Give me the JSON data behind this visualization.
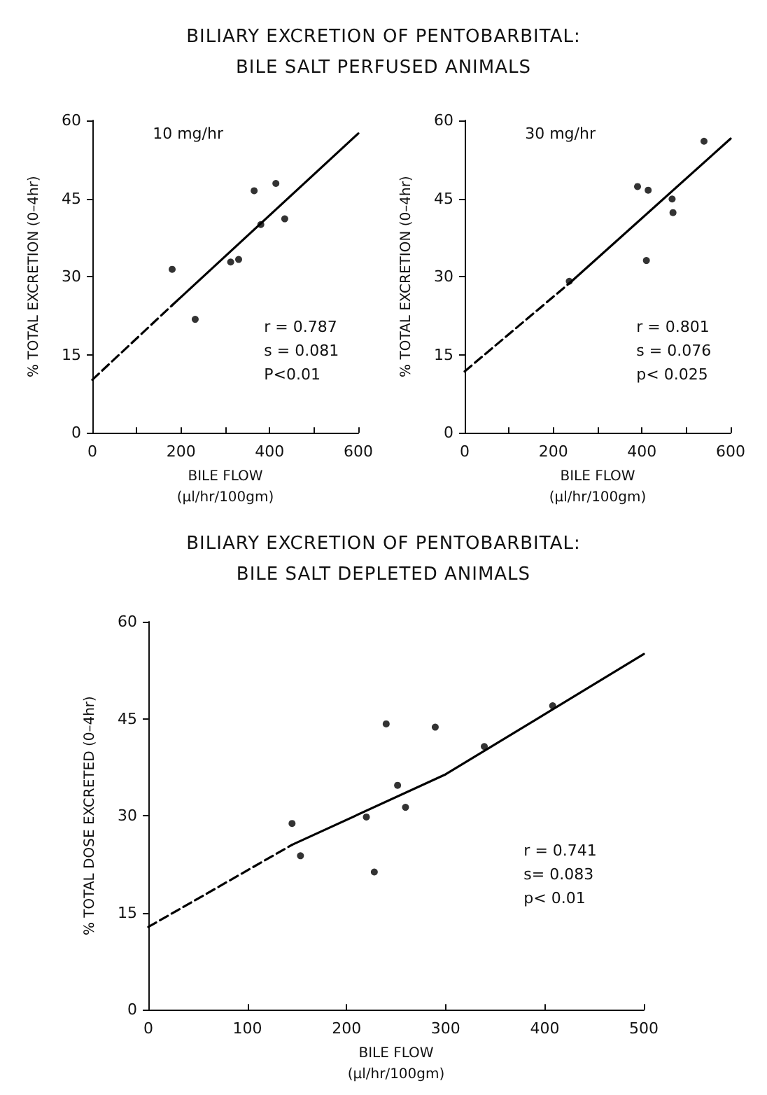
{
  "chart_data": [
    {
      "type": "scatter",
      "title": "BILIARY EXCRETION OF PENTOBARBITAL:\nBILE SALT PERFUSED ANIMALS",
      "xlabel": "BILE FLOW\n(µl/hr/100gm)",
      "ylabel": "% TOTAL EXCRETION (0–4hr)",
      "annotations": [
        "10 mg/hr",
        "r = 0.787",
        "s = 0.081",
        "P<0.01"
      ],
      "xlim": [
        0,
        600
      ],
      "xticks": [
        0,
        {
          "value": 100,
          "label": null
        },
        200,
        {
          "value": 300,
          "label": null
        },
        400,
        {
          "value": 500,
          "label": null
        },
        600
      ],
      "ylim": [
        0,
        60
      ],
      "yticks": [
        0,
        15,
        30,
        45,
        60
      ],
      "grid": false,
      "series": [
        {
          "type": "scatter",
          "color": "#000000",
          "marker": "circle",
          "x": [
            180,
            232,
            312,
            330,
            365,
            380,
            414,
            434
          ],
          "values": [
            31.4,
            21.8,
            32.8,
            33.3,
            46.5,
            40,
            47.9,
            41.1
          ]
        },
        {
          "type": "line",
          "color": "#000000",
          "marker": "none",
          "line_style": "dashed",
          "x": [
            0,
            180
          ],
          "values": [
            10.2,
            24.5
          ]
        },
        {
          "type": "line",
          "color": "#000000",
          "marker": "none",
          "line_style": "solid",
          "x": [
            180,
            600
          ],
          "values": [
            24.5,
            57.5
          ]
        }
      ]
    },
    {
      "type": "scatter",
      "xlabel": "BILE FLOW\n(µl/hr/100gm)",
      "ylabel": "% TOTAL EXCRETION (0–4hr)",
      "annotations": [
        "30 mg/hr",
        "r = 0.801",
        "s = 0.076",
        "p< 0.025"
      ],
      "xlim": [
        0,
        600
      ],
      "xticks": [
        0,
        {
          "value": 100,
          "label": null
        },
        200,
        {
          "value": 300,
          "label": null
        },
        400,
        {
          "value": 500,
          "label": null
        },
        600
      ],
      "ylim": [
        0,
        60
      ],
      "yticks": [
        0,
        15,
        30,
        45,
        60
      ],
      "grid": false,
      "series": [
        {
          "type": "scatter",
          "color": "#000000",
          "marker": "circle",
          "x": [
            236,
            390,
            414,
            410,
            468,
            470,
            540
          ],
          "values": [
            29.1,
            47.3,
            46.6,
            33.1,
            44.9,
            42.3,
            56.0
          ]
        },
        {
          "type": "line",
          "color": "#000000",
          "marker": "none",
          "line_style": "dashed",
          "x": [
            0,
            240
          ],
          "values": [
            11.8,
            29
          ]
        },
        {
          "type": "line",
          "color": "#000000",
          "marker": "none",
          "line_style": "solid",
          "x": [
            240,
            600
          ],
          "values": [
            29,
            56.5
          ]
        }
      ]
    },
    {
      "type": "scatter",
      "title": "BILIARY EXCRETION OF PENTOBARBITAL:\nBILE SALT DEPLETED ANIMALS",
      "xlabel": "BILE FLOW\n(µl/hr/100gm)",
      "ylabel": "% TOTAL DOSE EXCRETED (0–4hr)",
      "annotations": [
        "r = 0.741",
        "s= 0.083",
        "p< 0.01"
      ],
      "xlim": [
        0,
        500
      ],
      "xticks": [
        0,
        100,
        200,
        300,
        400,
        500
      ],
      "ylim": [
        0,
        60
      ],
      "yticks": [
        0,
        15,
        30,
        45,
        60
      ],
      "grid": false,
      "series": [
        {
          "type": "scatter",
          "color": "#000000",
          "marker": "circle",
          "x": [
            145,
            153.5,
            220,
            228,
            240,
            251.5,
            259.5,
            289.5,
            339,
            408
          ],
          "values": [
            28.8,
            23.8,
            29.8,
            21.3,
            44.2,
            34.7,
            31.3,
            43.7,
            40.7,
            47.0
          ]
        },
        {
          "type": "line",
          "color": "#000000",
          "marker": "none",
          "line_style": "dashed",
          "x": [
            0,
            145
          ],
          "values": [
            12.8,
            25.5
          ]
        },
        {
          "type": "line",
          "color": "#000000",
          "marker": "none",
          "line_style": "solid",
          "x": [
            145,
            300,
            500
          ],
          "values": [
            25.5,
            36.4,
            55
          ]
        }
      ]
    }
  ]
}
